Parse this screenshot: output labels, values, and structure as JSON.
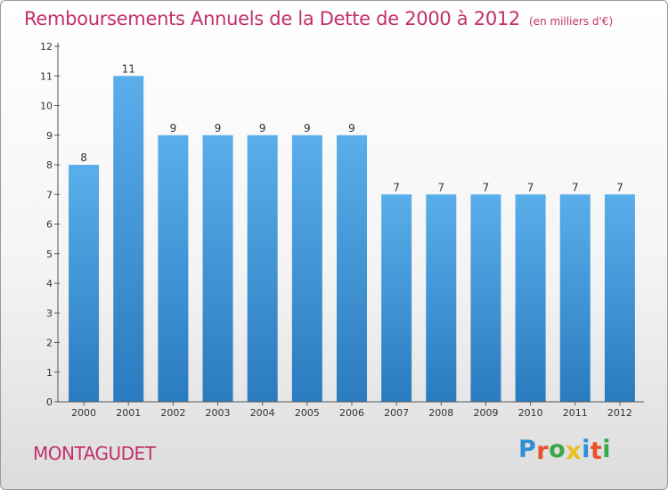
{
  "chart_data": {
    "type": "bar",
    "title": "Remboursements Annuels de la Dette de 2000 à 2012",
    "subtitle": "(en milliers d'€)",
    "categories": [
      "2000",
      "2001",
      "2002",
      "2003",
      "2004",
      "2005",
      "2006",
      "2007",
      "2008",
      "2009",
      "2010",
      "2011",
      "2012"
    ],
    "values": [
      8,
      11,
      9,
      9,
      9,
      9,
      9,
      7,
      7,
      7,
      7,
      7,
      7
    ],
    "value_labels": [
      "8",
      "11",
      "9",
      "9",
      "9",
      "9",
      "9",
      "7",
      "7",
      "7",
      "7",
      "7",
      "7"
    ],
    "ylim": [
      0,
      12
    ],
    "yticks": [
      "0",
      "1",
      "2",
      "3",
      "4",
      "5",
      "6",
      "7",
      "8",
      "9",
      "10",
      "11",
      "12"
    ],
    "xlabel": "",
    "ylabel": "",
    "grid": false,
    "bar_color_top": "#5aaeea",
    "bar_color_bottom": "#2a7bbf"
  },
  "place": "MONTAGUDET",
  "logo": {
    "letters": [
      "P",
      "r",
      "o",
      "x",
      "i",
      "t",
      "i"
    ],
    "colors": [
      "#2f8fd6",
      "#e8502a",
      "#3aa64a",
      "#e8c020",
      "#2f8fd6",
      "#e8502a",
      "#3aa64a"
    ]
  },
  "colors": {
    "title": "#c2306a",
    "axis": "#555555"
  }
}
